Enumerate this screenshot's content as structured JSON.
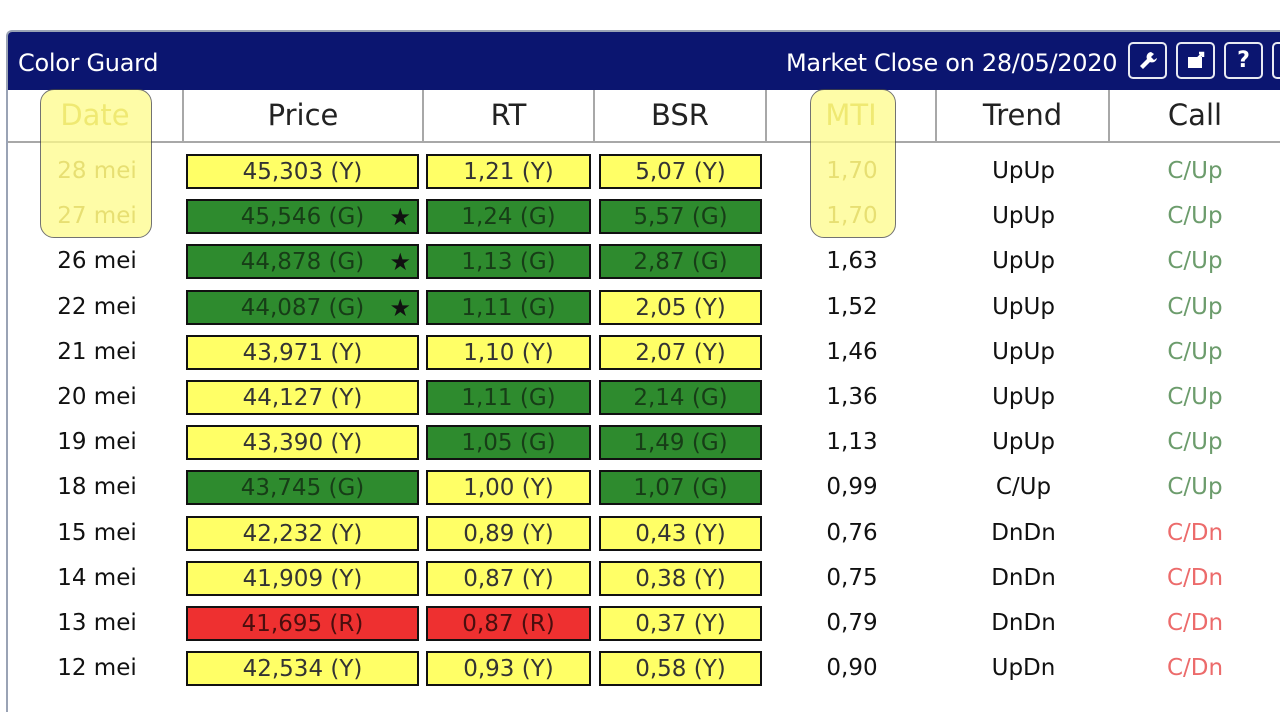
{
  "title": "Color Guard",
  "market_close": "Market Close on 28/05/2020",
  "toolbar": {
    "buttons": [
      {
        "name": "settings-wrench",
        "icon": "wrench-icon"
      },
      {
        "name": "export",
        "icon": "export-icon"
      },
      {
        "name": "help",
        "label": "?",
        "icon": "question-icon"
      },
      {
        "name": "more",
        "icon": "partial-button-icon"
      }
    ]
  },
  "colors": {
    "titlebar": "#0b1570",
    "yellow": "#ffff66",
    "green": "#2e8b2e",
    "red": "#ee3030",
    "highlight": "#fefb8a",
    "call_up": "#6c9c6c",
    "call_dn": "#ec6b6b"
  },
  "columns": [
    "Date",
    "Price",
    "RT",
    "BSR",
    "MTI",
    "Trend",
    "Call"
  ],
  "rows": [
    {
      "date": "28 mei",
      "price": "45,303 (Y)",
      "price_c": "Y",
      "star": "",
      "rt": "1,21 (Y)",
      "rt_c": "Y",
      "bsr": "5,07 (Y)",
      "bsr_c": "Y",
      "mti": "1,70",
      "trend": "UpUp",
      "call": "C/Up",
      "call_dir": "up"
    },
    {
      "date": "27 mei",
      "price": "45,546 (G)",
      "price_c": "G",
      "star": "★",
      "rt": "1,24 (G)",
      "rt_c": "G",
      "bsr": "5,57 (G)",
      "bsr_c": "G",
      "mti": "1,70",
      "trend": "UpUp",
      "call": "C/Up",
      "call_dir": "up"
    },
    {
      "date": "26 mei",
      "price": "44,878 (G)",
      "price_c": "G",
      "star": "★",
      "rt": "1,13 (G)",
      "rt_c": "G",
      "bsr": "2,87 (G)",
      "bsr_c": "G",
      "mti": "1,63",
      "trend": "UpUp",
      "call": "C/Up",
      "call_dir": "up"
    },
    {
      "date": "22 mei",
      "price": "44,087 (G)",
      "price_c": "G",
      "star": "★",
      "rt": "1,11 (G)",
      "rt_c": "G",
      "bsr": "2,05 (Y)",
      "bsr_c": "Y",
      "mti": "1,52",
      "trend": "UpUp",
      "call": "C/Up",
      "call_dir": "up"
    },
    {
      "date": "21 mei",
      "price": "43,971 (Y)",
      "price_c": "Y",
      "star": "",
      "rt": "1,10 (Y)",
      "rt_c": "Y",
      "bsr": "2,07 (Y)",
      "bsr_c": "Y",
      "mti": "1,46",
      "trend": "UpUp",
      "call": "C/Up",
      "call_dir": "up"
    },
    {
      "date": "20 mei",
      "price": "44,127 (Y)",
      "price_c": "Y",
      "star": "",
      "rt": "1,11 (G)",
      "rt_c": "G",
      "bsr": "2,14 (G)",
      "bsr_c": "G",
      "mti": "1,36",
      "trend": "UpUp",
      "call": "C/Up",
      "call_dir": "up"
    },
    {
      "date": "19 mei",
      "price": "43,390 (Y)",
      "price_c": "Y",
      "star": "",
      "rt": "1,05 (G)",
      "rt_c": "G",
      "bsr": "1,49 (G)",
      "bsr_c": "G",
      "mti": "1,13",
      "trend": "UpUp",
      "call": "C/Up",
      "call_dir": "up"
    },
    {
      "date": "18 mei",
      "price": "43,745 (G)",
      "price_c": "G",
      "star": "",
      "rt": "1,00 (Y)",
      "rt_c": "Y",
      "bsr": "1,07 (G)",
      "bsr_c": "G",
      "mti": "0,99",
      "trend": "C/Up",
      "call": "C/Up",
      "call_dir": "up"
    },
    {
      "date": "15 mei",
      "price": "42,232 (Y)",
      "price_c": "Y",
      "star": "",
      "rt": "0,89 (Y)",
      "rt_c": "Y",
      "bsr": "0,43 (Y)",
      "bsr_c": "Y",
      "mti": "0,76",
      "trend": "DnDn",
      "call": "C/Dn",
      "call_dir": "dn"
    },
    {
      "date": "14 mei",
      "price": "41,909 (Y)",
      "price_c": "Y",
      "star": "",
      "rt": "0,87 (Y)",
      "rt_c": "Y",
      "bsr": "0,38 (Y)",
      "bsr_c": "Y",
      "mti": "0,75",
      "trend": "DnDn",
      "call": "C/Dn",
      "call_dir": "dn"
    },
    {
      "date": "13 mei",
      "price": "41,695 (R)",
      "price_c": "R",
      "star": "",
      "rt": "0,87 (R)",
      "rt_c": "R",
      "bsr": "0,37 (Y)",
      "bsr_c": "Y",
      "mti": "0,79",
      "trend": "DnDn",
      "call": "C/Dn",
      "call_dir": "dn"
    },
    {
      "date": "12 mei",
      "price": "42,534 (Y)",
      "price_c": "Y",
      "star": "",
      "rt": "0,93 (Y)",
      "rt_c": "Y",
      "bsr": "0,58 (Y)",
      "bsr_c": "Y",
      "mti": "0,90",
      "trend": "UpDn",
      "call": "C/Dn",
      "call_dir": "dn"
    }
  ]
}
